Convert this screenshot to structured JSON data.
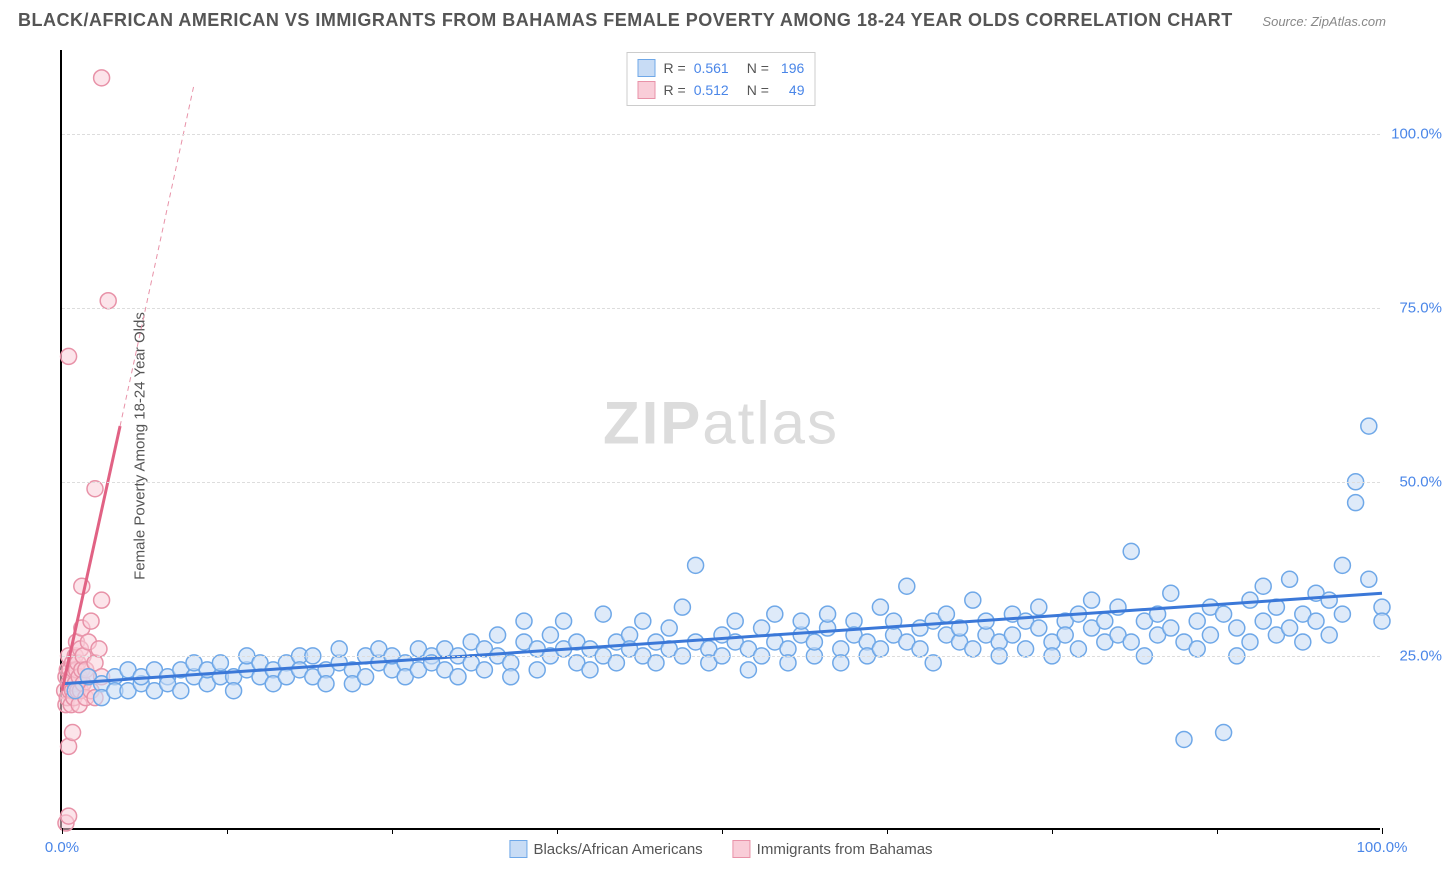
{
  "title": "BLACK/AFRICAN AMERICAN VS IMMIGRANTS FROM BAHAMAS FEMALE POVERTY AMONG 18-24 YEAR OLDS CORRELATION CHART",
  "source_label": "Source:",
  "source_value": "ZipAtlas.com",
  "y_axis_label": "Female Poverty Among 18-24 Year Olds",
  "watermark_bold": "ZIP",
  "watermark_rest": "atlas",
  "chart": {
    "type": "scatter",
    "xlim": [
      0,
      100
    ],
    "ylim": [
      0,
      112
    ],
    "x_ticks": [
      0,
      12.5,
      25,
      37.5,
      50,
      62.5,
      75,
      87.5,
      100
    ],
    "x_tick_labels": {
      "0": "0.0%",
      "100": "100.0%"
    },
    "y_gridlines": [
      25,
      50,
      75,
      100
    ],
    "y_tick_labels": {
      "25": "25.0%",
      "50": "50.0%",
      "75": "75.0%",
      "100": "100.0%"
    },
    "background_color": "#ffffff",
    "grid_color": "#dddddd",
    "grid_dash": "4,3",
    "axis_color": "#000000",
    "marker_radius": 8,
    "marker_stroke_width": 1.5,
    "series": [
      {
        "id": "blue",
        "label": "Blacks/African Americans",
        "R": "0.561",
        "N": "196",
        "fill": "#c8dcf5",
        "stroke": "#6fa8e8",
        "fill_opacity": 0.6,
        "trend": {
          "x1": 0,
          "y1": 21,
          "x2": 100,
          "y2": 34,
          "stroke": "#3b78d8",
          "width": 3,
          "dash": null
        },
        "points": [
          [
            1,
            20
          ],
          [
            2,
            22
          ],
          [
            3,
            21
          ],
          [
            3,
            19
          ],
          [
            4,
            22
          ],
          [
            4,
            20
          ],
          [
            5,
            23
          ],
          [
            5,
            20
          ],
          [
            6,
            21
          ],
          [
            6,
            22
          ],
          [
            7,
            23
          ],
          [
            7,
            20
          ],
          [
            8,
            22
          ],
          [
            8,
            21
          ],
          [
            9,
            23
          ],
          [
            9,
            20
          ],
          [
            10,
            22
          ],
          [
            10,
            24
          ],
          [
            11,
            21
          ],
          [
            11,
            23
          ],
          [
            12,
            22
          ],
          [
            12,
            24
          ],
          [
            13,
            22
          ],
          [
            13,
            20
          ],
          [
            14,
            23
          ],
          [
            14,
            25
          ],
          [
            15,
            22
          ],
          [
            15,
            24
          ],
          [
            16,
            23
          ],
          [
            16,
            21
          ],
          [
            17,
            24
          ],
          [
            17,
            22
          ],
          [
            18,
            25
          ],
          [
            18,
            23
          ],
          [
            19,
            22
          ],
          [
            19,
            25
          ],
          [
            20,
            23
          ],
          [
            20,
            21
          ],
          [
            21,
            24
          ],
          [
            21,
            26
          ],
          [
            22,
            23
          ],
          [
            22,
            21
          ],
          [
            23,
            25
          ],
          [
            23,
            22
          ],
          [
            24,
            24
          ],
          [
            24,
            26
          ],
          [
            25,
            23
          ],
          [
            25,
            25
          ],
          [
            26,
            24
          ],
          [
            26,
            22
          ],
          [
            27,
            26
          ],
          [
            27,
            23
          ],
          [
            28,
            25
          ],
          [
            28,
            24
          ],
          [
            29,
            23
          ],
          [
            29,
            26
          ],
          [
            30,
            25
          ],
          [
            30,
            22
          ],
          [
            31,
            27
          ],
          [
            31,
            24
          ],
          [
            32,
            23
          ],
          [
            32,
            26
          ],
          [
            33,
            25
          ],
          [
            33,
            28
          ],
          [
            34,
            24
          ],
          [
            34,
            22
          ],
          [
            35,
            27
          ],
          [
            35,
            30
          ],
          [
            36,
            23
          ],
          [
            36,
            26
          ],
          [
            37,
            25
          ],
          [
            37,
            28
          ],
          [
            38,
            26
          ],
          [
            38,
            30
          ],
          [
            39,
            24
          ],
          [
            39,
            27
          ],
          [
            40,
            26
          ],
          [
            40,
            23
          ],
          [
            41,
            31
          ],
          [
            41,
            25
          ],
          [
            42,
            27
          ],
          [
            42,
            24
          ],
          [
            43,
            28
          ],
          [
            43,
            26
          ],
          [
            44,
            25
          ],
          [
            44,
            30
          ],
          [
            45,
            27
          ],
          [
            45,
            24
          ],
          [
            46,
            29
          ],
          [
            46,
            26
          ],
          [
            47,
            25
          ],
          [
            47,
            32
          ],
          [
            48,
            27
          ],
          [
            48,
            38
          ],
          [
            49,
            26
          ],
          [
            49,
            24
          ],
          [
            50,
            28
          ],
          [
            50,
            25
          ],
          [
            51,
            30
          ],
          [
            51,
            27
          ],
          [
            52,
            26
          ],
          [
            52,
            23
          ],
          [
            53,
            29
          ],
          [
            53,
            25
          ],
          [
            54,
            27
          ],
          [
            54,
            31
          ],
          [
            55,
            26
          ],
          [
            55,
            24
          ],
          [
            56,
            28
          ],
          [
            56,
            30
          ],
          [
            57,
            25
          ],
          [
            57,
            27
          ],
          [
            58,
            29
          ],
          [
            58,
            31
          ],
          [
            59,
            26
          ],
          [
            59,
            24
          ],
          [
            60,
            30
          ],
          [
            60,
            28
          ],
          [
            61,
            27
          ],
          [
            61,
            25
          ],
          [
            62,
            32
          ],
          [
            62,
            26
          ],
          [
            63,
            28
          ],
          [
            63,
            30
          ],
          [
            64,
            27
          ],
          [
            64,
            35
          ],
          [
            65,
            29
          ],
          [
            65,
            26
          ],
          [
            66,
            30
          ],
          [
            66,
            24
          ],
          [
            67,
            28
          ],
          [
            67,
            31
          ],
          [
            68,
            27
          ],
          [
            68,
            29
          ],
          [
            69,
            26
          ],
          [
            69,
            33
          ],
          [
            70,
            28
          ],
          [
            70,
            30
          ],
          [
            71,
            27
          ],
          [
            71,
            25
          ],
          [
            72,
            31
          ],
          [
            72,
            28
          ],
          [
            73,
            30
          ],
          [
            73,
            26
          ],
          [
            74,
            29
          ],
          [
            74,
            32
          ],
          [
            75,
            27
          ],
          [
            75,
            25
          ],
          [
            76,
            30
          ],
          [
            76,
            28
          ],
          [
            77,
            31
          ],
          [
            77,
            26
          ],
          [
            78,
            29
          ],
          [
            78,
            33
          ],
          [
            79,
            27
          ],
          [
            79,
            30
          ],
          [
            80,
            28
          ],
          [
            80,
            32
          ],
          [
            81,
            40
          ],
          [
            81,
            27
          ],
          [
            82,
            30
          ],
          [
            82,
            25
          ],
          [
            83,
            31
          ],
          [
            83,
            28
          ],
          [
            84,
            29
          ],
          [
            84,
            34
          ],
          [
            85,
            13
          ],
          [
            85,
            27
          ],
          [
            86,
            30
          ],
          [
            86,
            26
          ],
          [
            87,
            32
          ],
          [
            87,
            28
          ],
          [
            88,
            14
          ],
          [
            88,
            31
          ],
          [
            89,
            29
          ],
          [
            89,
            25
          ],
          [
            90,
            33
          ],
          [
            90,
            27
          ],
          [
            91,
            30
          ],
          [
            91,
            35
          ],
          [
            92,
            28
          ],
          [
            92,
            32
          ],
          [
            93,
            36
          ],
          [
            93,
            29
          ],
          [
            94,
            31
          ],
          [
            94,
            27
          ],
          [
            95,
            30
          ],
          [
            95,
            34
          ],
          [
            96,
            28
          ],
          [
            96,
            33
          ],
          [
            97,
            38
          ],
          [
            97,
            31
          ],
          [
            98,
            47
          ],
          [
            98,
            50
          ],
          [
            99,
            36
          ],
          [
            99,
            58
          ],
          [
            100,
            32
          ],
          [
            100,
            30
          ]
        ]
      },
      {
        "id": "pink",
        "label": "Immigrants from Bahamas",
        "R": "0.512",
        "N": "49",
        "fill": "#f9cdd8",
        "stroke": "#e892a8",
        "fill_opacity": 0.55,
        "trend_solid": {
          "x1": 0,
          "y1": 20,
          "x2": 4.4,
          "y2": 58,
          "stroke": "#e16284",
          "width": 3
        },
        "trend_dash": {
          "x1": 4.4,
          "y1": 58,
          "x2": 10,
          "y2": 107,
          "stroke": "#e892a8",
          "width": 1,
          "dash": "5,4"
        },
        "points": [
          [
            0.2,
            20
          ],
          [
            0.3,
            22
          ],
          [
            0.3,
            18
          ],
          [
            0.4,
            23
          ],
          [
            0.4,
            19
          ],
          [
            0.5,
            21
          ],
          [
            0.5,
            25
          ],
          [
            0.6,
            20
          ],
          [
            0.6,
            23
          ],
          [
            0.7,
            22
          ],
          [
            0.7,
            18
          ],
          [
            0.8,
            24
          ],
          [
            0.8,
            20
          ],
          [
            0.9,
            23
          ],
          [
            0.9,
            19
          ],
          [
            1.0,
            25
          ],
          [
            1.0,
            21
          ],
          [
            1.1,
            23
          ],
          [
            1.1,
            27
          ],
          [
            1.2,
            20
          ],
          [
            1.2,
            24
          ],
          [
            1.3,
            22
          ],
          [
            1.3,
            18
          ],
          [
            1.4,
            26
          ],
          [
            1.4,
            20
          ],
          [
            1.5,
            23
          ],
          [
            1.5,
            29
          ],
          [
            1.6,
            21
          ],
          [
            1.6,
            25
          ],
          [
            1.8,
            23
          ],
          [
            1.8,
            19
          ],
          [
            2.0,
            27
          ],
          [
            2.0,
            22
          ],
          [
            2.2,
            20
          ],
          [
            2.2,
            30
          ],
          [
            2.5,
            24
          ],
          [
            2.5,
            19
          ],
          [
            2.8,
            26
          ],
          [
            3.0,
            22
          ],
          [
            3.0,
            33
          ],
          [
            0.5,
            12
          ],
          [
            0.8,
            14
          ],
          [
            0.3,
            1
          ],
          [
            0.5,
            2
          ],
          [
            2.5,
            49
          ],
          [
            0.5,
            68
          ],
          [
            3.5,
            76
          ],
          [
            3.0,
            108
          ],
          [
            1.5,
            35
          ]
        ]
      }
    ]
  },
  "legend_top": {
    "R_label": "R =",
    "N_label": "N ="
  }
}
